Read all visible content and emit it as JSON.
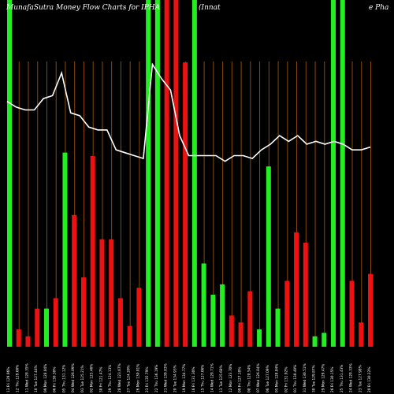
{
  "chart_data": {
    "type": "bar",
    "title_left": "MunafaSutra  Money Flow  Charts for IPHA",
    "title_mid": "(Innat",
    "title_right": "e   Pha",
    "colors": {
      "up": "#22ee22",
      "down": "#ee1111",
      "line": "#ffffff",
      "grid": "#8b4a0a",
      "background": "#000000"
    },
    "ylim": [
      0,
      1
    ],
    "bars": [
      {
        "label": "13 Fri 129.96%",
        "value": 1.0,
        "dir": "up"
      },
      {
        "label": "12 Thu 129.00%",
        "value": 0.05,
        "dir": "down"
      },
      {
        "label": "11 Wed 128.35%",
        "value": 0.03,
        "dir": "down"
      },
      {
        "label": "10 Tue 127.44%",
        "value": 0.11,
        "dir": "down"
      },
      {
        "label": "09 Mon 128.04%",
        "value": 0.11,
        "dir": "up"
      },
      {
        "label": "06 Fri 130.30%",
        "value": 0.14,
        "dir": "down"
      },
      {
        "label": "05 Thu 131.12%",
        "value": 0.56,
        "dir": "up"
      },
      {
        "label": "04 Wed 126.09%",
        "value": 0.38,
        "dir": "down"
      },
      {
        "label": "03 Tue 125.21%",
        "value": 0.2,
        "dir": "down"
      },
      {
        "label": "02 Mon 123.46%",
        "value": 0.55,
        "dir": "down"
      },
      {
        "label": "30 Fri 121.47%",
        "value": 0.31,
        "dir": "down"
      },
      {
        "label": "29 Thu 124.13%",
        "value": 0.31,
        "dir": "down"
      },
      {
        "label": "28 Wed 123.07%",
        "value": 0.14,
        "dir": "down"
      },
      {
        "label": "27 Tue 124.20%",
        "value": 0.06,
        "dir": "down"
      },
      {
        "label": "26 Mon 130.01%",
        "value": 0.17,
        "dir": "down"
      },
      {
        "label": "23 Fri 135.79%",
        "value": 1.0,
        "dir": "up"
      },
      {
        "label": "22 Thu 136.19%",
        "value": 1.0,
        "dir": "up"
      },
      {
        "label": "21 Wed 139.83%",
        "value": 1.0,
        "dir": "down"
      },
      {
        "label": "20 Tue 134.93%",
        "value": 1.0,
        "dir": "down"
      },
      {
        "label": "19 Mon 134.77%",
        "value": 0.82,
        "dir": "down"
      },
      {
        "label": "16 Fri 131.30%",
        "value": 1.0,
        "dir": "up"
      },
      {
        "label": "15 Thu 127.06%",
        "value": 0.24,
        "dir": "up"
      },
      {
        "label": "14 Wed 129.71%",
        "value": 0.15,
        "dir": "up"
      },
      {
        "label": "13 Tue 125.68%",
        "value": 0.18,
        "dir": "up"
      },
      {
        "label": "12 Mon 123.70%",
        "value": 0.09,
        "dir": "down"
      },
      {
        "label": "09 Fri 127.10%",
        "value": 0.07,
        "dir": "down"
      },
      {
        "label": "08 Thu 128.54%",
        "value": 0.16,
        "dir": "down"
      },
      {
        "label": "07 Wed 126.84%",
        "value": 0.05,
        "dir": "up"
      },
      {
        "label": "06 Tue 127.09%",
        "value": 0.52,
        "dir": "up"
      },
      {
        "label": "05 Mon 128.84%",
        "value": 0.11,
        "dir": "up"
      },
      {
        "label": "02 Fri 131.92%",
        "value": 0.19,
        "dir": "down"
      },
      {
        "label": "01 Thu 130.40%",
        "value": 0.33,
        "dir": "down"
      },
      {
        "label": "31 Wed 130.51%",
        "value": 0.3,
        "dir": "down"
      },
      {
        "label": "30 Tue 129.87%",
        "value": 0.03,
        "dir": "up"
      },
      {
        "label": "29 Mon 129.47%",
        "value": 0.04,
        "dir": "up"
      },
      {
        "label": "26 Fri 130.15%",
        "value": 1.0,
        "dir": "up"
      },
      {
        "label": "25 Thu 131.43%",
        "value": 1.0,
        "dir": "up"
      },
      {
        "label": "24 Wed 129.33%",
        "value": 0.19,
        "dir": "down"
      },
      {
        "label": "23 Tue 127.98%",
        "value": 0.07,
        "dir": "down"
      },
      {
        "label": "20 Fri 130.22%",
        "value": 0.21,
        "dir": "down"
      }
    ],
    "line": [
      0.86,
      0.84,
      0.83,
      0.83,
      0.87,
      0.88,
      0.96,
      0.82,
      0.81,
      0.77,
      0.76,
      0.76,
      0.69,
      0.68,
      0.67,
      0.66,
      0.99,
      0.94,
      0.9,
      0.74,
      0.67,
      0.67,
      0.67,
      0.67,
      0.65,
      0.67,
      0.67,
      0.66,
      0.69,
      0.71,
      0.74,
      0.72,
      0.74,
      0.71,
      0.72,
      0.71,
      0.72,
      0.71,
      0.69,
      0.69,
      0.7
    ]
  }
}
